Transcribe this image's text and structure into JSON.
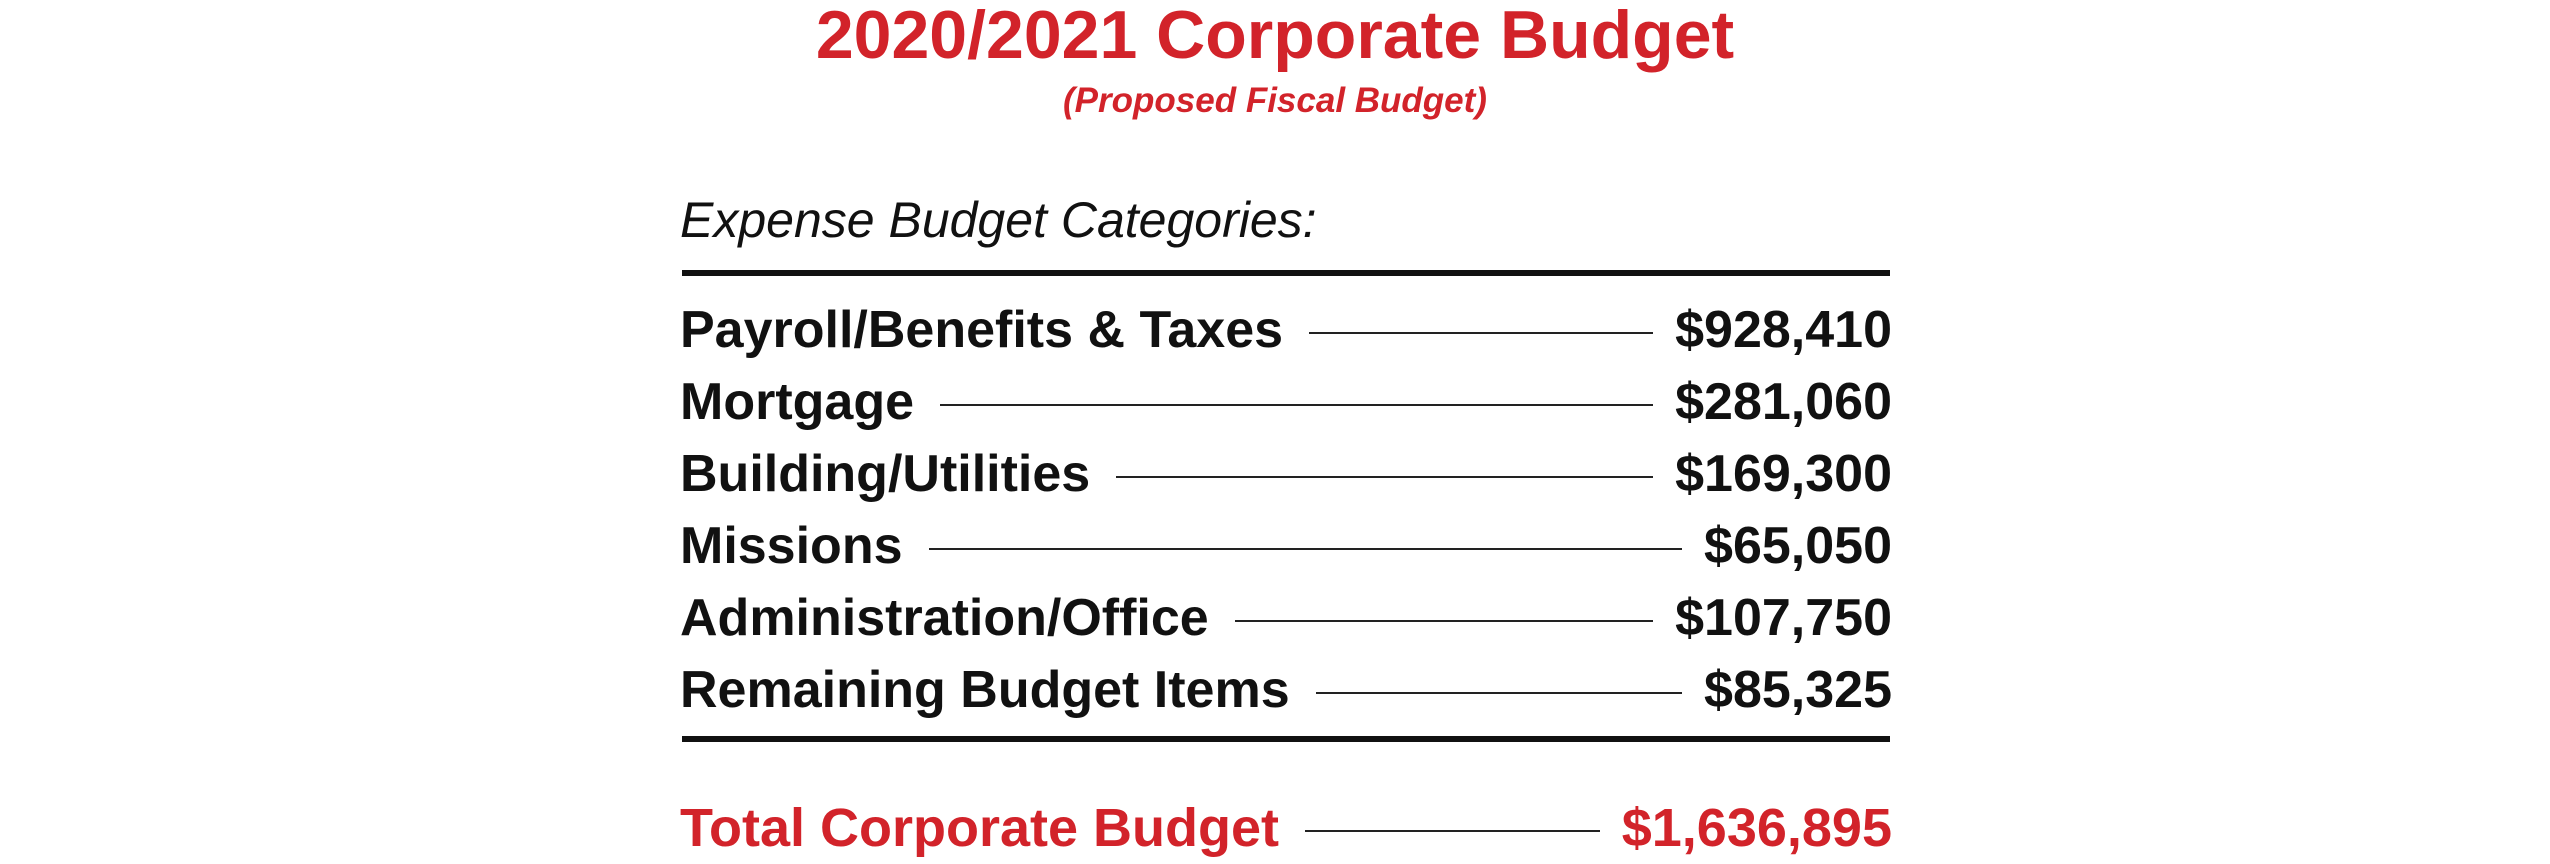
{
  "header": {
    "title": "2020/2021 Corporate Budget",
    "subtitle": "(Proposed Fiscal Budget)"
  },
  "section": {
    "heading": "Expense Budget Categories:"
  },
  "line_items": [
    {
      "label": "Payroll/Benefits & Taxes",
      "amount": "$928,410"
    },
    {
      "label": "Mortgage",
      "amount": "$281,060"
    },
    {
      "label": "Building/Utilities",
      "amount": "$169,300"
    },
    {
      "label": "Missions",
      "amount": "$65,050"
    },
    {
      "label": "Administration/Office",
      "amount": "$107,750"
    },
    {
      "label": "Remaining Budget Items",
      "amount": "$85,325"
    }
  ],
  "total": {
    "label": "Total Corporate Budget",
    "amount": "$1,636,895"
  },
  "colors": {
    "accent": "#d2232a",
    "text": "#111111"
  }
}
